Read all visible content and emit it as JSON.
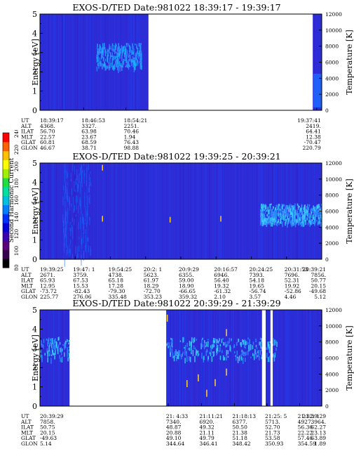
{
  "panels": [
    {
      "title": "EXOS-D/TED   Date:981022   18:39:17 - 19:39:17",
      "gaps": [
        [
          0.385,
          0.968
        ]
      ],
      "orbit_times": [
        "18:39:17",
        "18:46:53",
        "18:54:21",
        "19:37:41"
      ],
      "orbit": {
        "UT": [
          "18:39:17",
          "18:46:53",
          "18:54:21",
          "19:37:41"
        ],
        "ALT": [
          "4368.",
          "3327.",
          "2251.",
          "2419."
        ],
        "ILAT": [
          "56.70",
          "63.98",
          "70.46",
          "64.41"
        ],
        "MLT": [
          "22.57",
          "23.67",
          "1.94",
          "12.38"
        ],
        "GLAT": [
          "60.81",
          "68.59",
          "76.43",
          "-70.47"
        ],
        "GLON": [
          "46.67",
          "38.71",
          "98.88",
          "220.79"
        ]
      },
      "orbit_positions": [
        0,
        0.155,
        0.305,
        0.982
      ]
    },
    {
      "title": "EXOS-D/TED   Date:981022   19:39:25 - 20:39:21",
      "gaps": [],
      "orbit": {
        "UT": [
          "19:39:25",
          "19:47: 1",
          "19:54:25",
          "20:2: 1",
          "20:9:29",
          "20:16:57",
          "20:24:25",
          "20:31:53",
          "20:39:21"
        ],
        "ALT": [
          "2671.",
          "3759.",
          "4738.",
          "5623.",
          "6355.",
          "6946.",
          "7393.",
          "7696.",
          "7856."
        ],
        "ILAT": [
          "65.93",
          "67.53",
          "65.18",
          "61.97",
          "59.00",
          "56.40",
          "54.18",
          "52.31",
          "50.77"
        ],
        "MLT": [
          "12.95",
          "15.53",
          "17.28",
          "18.29",
          "18.90",
          "19.32",
          "19.65",
          "19.92",
          "20.15"
        ],
        "GLAT": [
          "-73.72",
          "-82.43",
          "-79.30",
          "-72.70",
          "-66.65",
          "-61.32",
          "-56.74",
          "-52.86",
          "-49.68"
        ],
        "GLON": [
          "225.77",
          "276.06",
          "335.48",
          "353.23",
          "359.32",
          "2.10",
          "3.57",
          "4.46",
          "5.12"
        ]
      },
      "orbit_positions": [
        0,
        0.125,
        0.25,
        0.375,
        0.5,
        0.625,
        0.75,
        0.875,
        1.0
      ]
    },
    {
      "title": "EXOS-D/TED   Date:981022   20:39:29 - 21:39:29",
      "gaps": [
        [
          0.105,
          0.448
        ],
        [
          0.788,
          0.801
        ],
        [
          0.818,
          0.826
        ]
      ],
      "orbit": {
        "UT": [
          "20:39:29",
          "21: 4:33",
          "21:11:21",
          "21:18:13",
          "21:25: 5",
          "21:32: 1",
          "21:39:29"
        ],
        "ALT": [
          "7858.",
          "7340.",
          "6920.",
          "6377.",
          "5713.",
          "4927.",
          "3964."
        ],
        "ILAT": [
          "50.75",
          "48.87",
          "49.32",
          "50.50",
          "52.70",
          "56.36",
          "62.27"
        ],
        "MLT": [
          "20.15",
          "20.88",
          "21.11",
          "21.38",
          "21.73",
          "22.22",
          "23.13"
        ],
        "GLAT": [
          "-49.63",
          "49.10",
          "49.79",
          "51.18",
          "53.58",
          "57.46",
          "63.89"
        ],
        "GLON": [
          "5.14",
          "344.64",
          "346.41",
          "348.42",
          "350.93",
          "354.59",
          "1.89"
        ]
      },
      "orbit_positions": [
        0,
        0.455,
        0.573,
        0.69,
        0.806,
        0.922,
        1.0
      ]
    }
  ],
  "row_labels": [
    "UT",
    "ALT",
    "ILAT",
    "MLT",
    "GLAT",
    "GLON"
  ],
  "colorbar": {
    "label": "Second Harmonic Current",
    "ticks": [
      "80",
      "100",
      "120",
      "140",
      "160",
      "180",
      "200",
      "220",
      "240"
    ],
    "colors": [
      "#000000",
      "#3a0050",
      "#5a007a",
      "#3a00b0",
      "#0000d8",
      "#0030ff",
      "#0080ff",
      "#00c0e0",
      "#00e0a0",
      "#20e040",
      "#a0f000",
      "#ffff00",
      "#ffc000",
      "#ff6000",
      "#ff0000"
    ]
  },
  "chart_data": [
    {
      "type": "heatmap",
      "title": "EXOS-D/TED   Date:981022   18:39:17 - 19:39:17",
      "ylabel": "Energy [eV]",
      "y2label": "Temperature [K]",
      "ylim": [
        0,
        5
      ],
      "yticks": [
        "0",
        "1",
        "2",
        "3",
        "4",
        "5"
      ],
      "y2lim": [
        0,
        12000
      ],
      "y2ticks": [
        "0",
        "2000",
        "4000",
        "6000",
        "8000",
        "10000",
        "12000"
      ],
      "x": [
        "18:39:17",
        "18:46:53",
        "18:54:21",
        "19:37:41"
      ]
    },
    {
      "type": "heatmap",
      "title": "EXOS-D/TED   Date:981022   19:39:25 - 20:39:21",
      "ylabel": "Energy [eV]",
      "y2label": "Temperature [K]",
      "ylim": [
        0,
        5
      ],
      "yticks": [
        "0",
        "1",
        "2",
        "3",
        "4",
        "5"
      ],
      "y2lim": [
        0,
        12000
      ],
      "y2ticks": [
        "0",
        "2000",
        "4000",
        "6000",
        "8000",
        "10000",
        "12000"
      ],
      "x": [
        "19:39:25",
        "19:47: 1",
        "19:54:25",
        "20:2: 1",
        "20:9:29",
        "20:16:57",
        "20:24:25",
        "20:31:53",
        "20:39:21"
      ]
    },
    {
      "type": "heatmap",
      "title": "EXOS-D/TED   Date:981022   20:39:29 - 21:39:29",
      "ylabel": "Energy [eV]",
      "y2label": "Temperature [K]",
      "ylim": [
        0,
        5
      ],
      "yticks": [
        "0",
        "1",
        "2",
        "3",
        "4",
        "5"
      ],
      "y2lim": [
        0,
        12000
      ],
      "y2ticks": [
        "0",
        "2000",
        "4000",
        "6000",
        "8000",
        "10000",
        "12000"
      ],
      "x": [
        "20:39:29",
        "21: 4:33",
        "21:11:21",
        "21:18:13",
        "21:25: 5",
        "21:32: 1",
        "21:39:29"
      ]
    }
  ]
}
